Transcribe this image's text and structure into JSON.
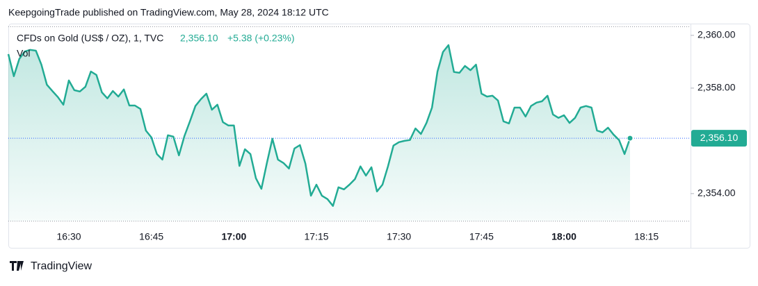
{
  "header": {
    "publisher": "KeepgoingTrade published on TradingView.com, May 28, 2024 18:12 UTC"
  },
  "footer": {
    "brand": "TradingView"
  },
  "chart_data": {
    "type": "area",
    "symbol": "CFDs on Gold (US$ / OZ), 1, TVC",
    "change": "+5.38 (+0.23%)",
    "volume_label": "Vol",
    "color": "#22ab94",
    "price_line_color": "#2962ff",
    "last_price": {
      "value": 2356.1,
      "label": "2,356.10"
    },
    "x": [
      "16:19",
      "16:20",
      "16:21",
      "16:22",
      "16:23",
      "16:24",
      "16:25",
      "16:26",
      "16:27",
      "16:28",
      "16:29",
      "16:30",
      "16:31",
      "16:32",
      "16:33",
      "16:34",
      "16:35",
      "16:36",
      "16:37",
      "16:38",
      "16:39",
      "16:40",
      "16:41",
      "16:42",
      "16:43",
      "16:44",
      "16:45",
      "16:46",
      "16:47",
      "16:48",
      "16:49",
      "16:50",
      "16:51",
      "16:52",
      "16:53",
      "16:54",
      "16:55",
      "16:56",
      "16:57",
      "16:58",
      "16:59",
      "17:00",
      "17:01",
      "17:02",
      "17:03",
      "17:04",
      "17:05",
      "17:06",
      "17:07",
      "17:08",
      "17:09",
      "17:10",
      "17:11",
      "17:12",
      "17:13",
      "17:14",
      "17:15",
      "17:16",
      "17:17",
      "17:18",
      "17:19",
      "17:20",
      "17:21",
      "17:22",
      "17:23",
      "17:24",
      "17:25",
      "17:26",
      "17:27",
      "17:28",
      "17:29",
      "17:30",
      "17:31",
      "17:32",
      "17:33",
      "17:34",
      "17:35",
      "17:36",
      "17:37",
      "17:38",
      "17:39",
      "17:40",
      "17:41",
      "17:42",
      "17:43",
      "17:44",
      "17:45",
      "17:46",
      "17:47",
      "17:48",
      "17:49",
      "17:50",
      "17:51",
      "17:52",
      "17:53",
      "17:54",
      "17:55",
      "17:56",
      "17:57",
      "17:58",
      "17:59",
      "18:00",
      "18:01",
      "18:02",
      "18:03",
      "18:04",
      "18:05",
      "18:06",
      "18:07",
      "18:08",
      "18:09",
      "18:10",
      "18:11",
      "18:12"
    ],
    "values": [
      2359.29,
      2358.45,
      2359.11,
      2359.39,
      2359.45,
      2359.42,
      2358.89,
      2358.13,
      2357.89,
      2357.66,
      2357.37,
      2358.29,
      2357.92,
      2357.87,
      2358.05,
      2358.63,
      2358.5,
      2357.84,
      2357.61,
      2357.89,
      2357.68,
      2357.95,
      2357.34,
      2357.34,
      2357.21,
      2356.39,
      2356.13,
      2355.5,
      2355.29,
      2356.21,
      2356.16,
      2355.45,
      2356.18,
      2356.74,
      2357.32,
      2357.58,
      2357.79,
      2357.18,
      2357.37,
      2356.71,
      2356.58,
      2356.58,
      2355.05,
      2355.68,
      2355.5,
      2354.58,
      2354.18,
      2355.16,
      2356.08,
      2355.29,
      2355.16,
      2354.95,
      2355.71,
      2355.84,
      2355.13,
      2353.92,
      2354.34,
      2353.92,
      2353.79,
      2353.53,
      2354.24,
      2354.16,
      2354.34,
      2354.55,
      2355.03,
      2354.68,
      2355.0,
      2354.08,
      2354.34,
      2355.03,
      2355.82,
      2355.95,
      2356.0,
      2356.03,
      2356.47,
      2356.26,
      2356.68,
      2357.26,
      2358.63,
      2359.37,
      2359.63,
      2358.61,
      2358.58,
      2358.84,
      2358.68,
      2358.89,
      2357.79,
      2357.68,
      2357.71,
      2357.53,
      2356.74,
      2356.66,
      2357.26,
      2357.26,
      2356.92,
      2357.32,
      2357.45,
      2357.5,
      2357.71,
      2357.0,
      2356.87,
      2356.97,
      2356.68,
      2356.87,
      2357.26,
      2357.32,
      2357.26,
      2356.39,
      2356.32,
      2356.5,
      2356.24,
      2356.03,
      2355.5,
      2356.1
    ],
    "xlim": [
      "16:19",
      "18:23"
    ],
    "xticks": [
      "16:30",
      "16:45",
      "17:00",
      "17:15",
      "17:30",
      "17:45",
      "18:00",
      "18:15"
    ],
    "ylim": [
      2352.97,
      2360.34
    ],
    "yticks": [
      {
        "value": 2354,
        "label": "2,354.00"
      },
      {
        "value": 2358,
        "label": "2,358.00"
      },
      {
        "value": 2360,
        "label": "2,360.00"
      }
    ]
  }
}
